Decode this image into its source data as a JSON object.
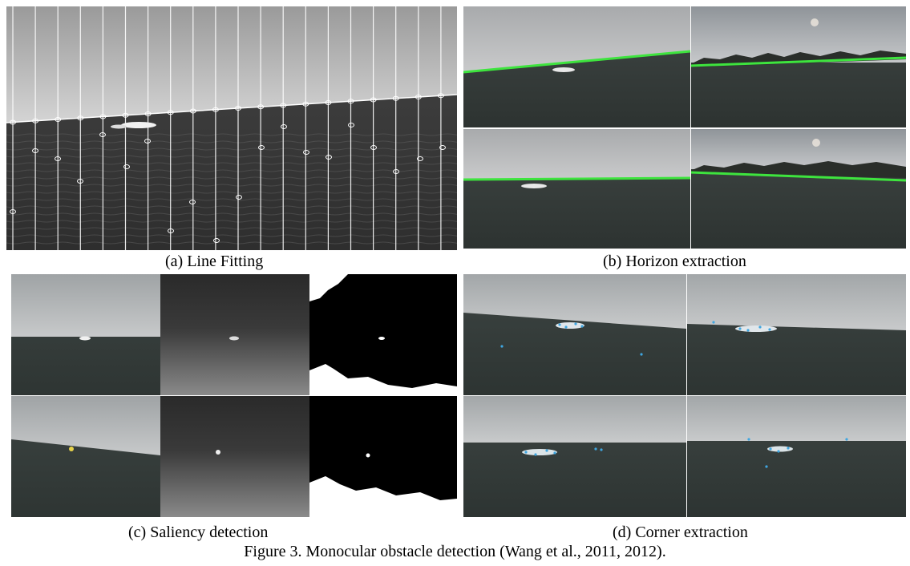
{
  "panels": {
    "a": {
      "label": "(a) Line Fitting"
    },
    "b": {
      "label": "(b) Horizon extraction"
    },
    "c": {
      "label": "(c) Saliency detection"
    },
    "d": {
      "label": "(d) Corner extraction"
    }
  },
  "figure_caption": "Figure 3. Monocular obstacle detection (Wang et al., 2011, 2012).",
  "colors": {
    "sky": "#b9bcbe",
    "sea": "#3a413f",
    "horizon_line": "#3ee43e",
    "fit_line": "#ffffff",
    "corner_marks": "#3fa6e0"
  }
}
